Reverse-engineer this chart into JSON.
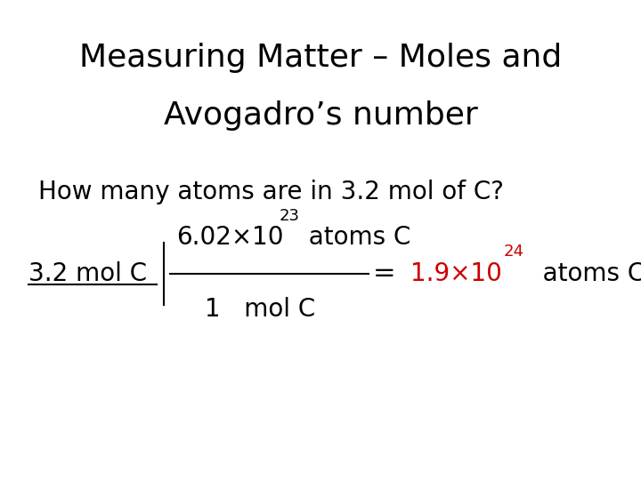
{
  "title_line1": "Measuring Matter – Moles and",
  "title_line2": "Avogadro’s number",
  "question": "How many atoms are in 3.2 mol of C?",
  "left_label": "3.2 mol C",
  "numerator_main": "6.02×10",
  "numerator_exp": "23",
  "numerator_suffix": "  atoms C",
  "denominator_main": "1   mol C",
  "equals": "=",
  "result_main": "1.9×10",
  "result_exp": "24",
  "result_suffix": "   atoms C",
  "result_color": "#cc0000",
  "bg_color": "#ffffff",
  "text_color": "#000000",
  "title_fontsize": 26,
  "question_fontsize": 20,
  "equation_fontsize": 20,
  "superscript_fontsize": 13
}
